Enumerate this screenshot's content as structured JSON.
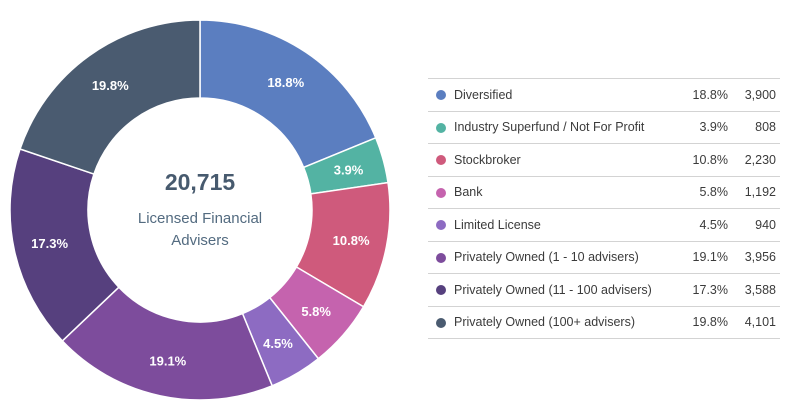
{
  "chart_data": {
    "type": "pie",
    "donut": true,
    "center_total": "20,715",
    "center_caption": [
      "Licensed Financial",
      "Advisers"
    ],
    "slices": [
      {
        "label": "Diversified",
        "percent": 18.8,
        "percent_text": "18.8%",
        "count": 3900,
        "count_text": "3,900",
        "color": "#5b7ec0"
      },
      {
        "label": "Industry Superfund / Not For Profit",
        "percent": 3.9,
        "percent_text": "3.9%",
        "count": 808,
        "count_text": "808",
        "color": "#53b3a3"
      },
      {
        "label": "Stockbroker",
        "percent": 10.8,
        "percent_text": "10.8%",
        "count": 2230,
        "count_text": "2,230",
        "color": "#cf5a7c"
      },
      {
        "label": "Bank",
        "percent": 5.8,
        "percent_text": "5.8%",
        "count": 1192,
        "count_text": "1,192",
        "color": "#c563ae"
      },
      {
        "label": "Limited License",
        "percent": 4.5,
        "percent_text": "4.5%",
        "count": 940,
        "count_text": "940",
        "color": "#8d6bc2"
      },
      {
        "label": "Privately Owned (1 - 10 advisers)",
        "percent": 19.1,
        "percent_text": "19.1%",
        "count": 3956,
        "count_text": "3,956",
        "color": "#7d4c9c"
      },
      {
        "label": "Privately Owned (11 - 100 advisers)",
        "percent": 17.3,
        "percent_text": "17.3%",
        "count": 3588,
        "count_text": "3,588",
        "color": "#56407e"
      },
      {
        "label": "Privately Owned (100+ advisers)",
        "percent": 19.8,
        "percent_text": "19.8%",
        "count": 4101,
        "count_text": "4,101",
        "color": "#4a5b70"
      }
    ]
  }
}
